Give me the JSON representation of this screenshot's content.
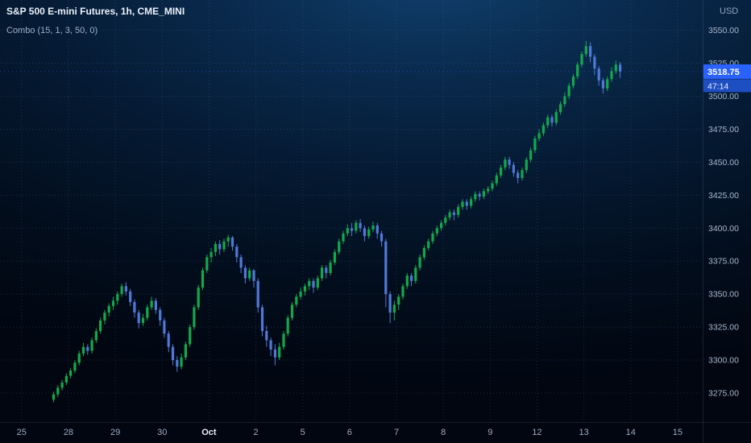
{
  "header": {
    "symbol_title": "S&P 500 E-mini Futures, 1h, CME_MINI",
    "indicator_label": "Combo (15, 1, 3, 50, 0)",
    "currency_label": "USD"
  },
  "price_scale": {
    "last_price_label": "3518.75",
    "countdown_label": "47:14",
    "last_price": 3518.75,
    "label_bg": "#2962ff",
    "countdown_bg": "#1e4fc2",
    "ticks": [
      "3550.00",
      "3525.00",
      "3500.00",
      "3475.00",
      "3450.00",
      "3425.00",
      "3400.00",
      "3375.00",
      "3350.00",
      "3325.00",
      "3300.00",
      "3275.00"
    ]
  },
  "time_scale": {
    "ticks": [
      "25",
      "28",
      "29",
      "30",
      "Oct",
      "2",
      "5",
      "6",
      "7",
      "8",
      "9",
      "12",
      "13",
      "14",
      "15"
    ],
    "month_tick": "Oct"
  },
  "chart_data": {
    "type": "candlestick",
    "title": "S&P 500 E-mini Futures, 1h, CME_MINI",
    "ylabel": "USD",
    "ylim": [
      3253,
      3573
    ],
    "price_step": 25,
    "grid": "dotted",
    "legend_position": "none",
    "up_color": "#13a94b",
    "down_color": "#5078d8",
    "bars": [
      [
        3270,
        3276,
        3268,
        3274
      ],
      [
        3274,
        3281,
        3272,
        3279
      ],
      [
        3279,
        3285,
        3277,
        3283
      ],
      [
        3283,
        3290,
        3281,
        3288
      ],
      [
        3288,
        3294,
        3286,
        3292
      ],
      [
        3292,
        3300,
        3290,
        3298
      ],
      [
        3298,
        3307,
        3296,
        3305
      ],
      [
        3305,
        3313,
        3303,
        3310
      ],
      [
        3310,
        3312,
        3304,
        3307
      ],
      [
        3307,
        3317,
        3305,
        3315
      ],
      [
        3315,
        3324,
        3313,
        3322
      ],
      [
        3322,
        3332,
        3320,
        3330
      ],
      [
        3330,
        3338,
        3327,
        3336
      ],
      [
        3336,
        3343,
        3333,
        3341
      ],
      [
        3341,
        3348,
        3338,
        3345
      ],
      [
        3345,
        3352,
        3342,
        3350
      ],
      [
        3350,
        3358,
        3348,
        3356
      ],
      [
        3356,
        3359,
        3349,
        3352
      ],
      [
        3352,
        3354,
        3341,
        3344
      ],
      [
        3344,
        3346,
        3332,
        3336
      ],
      [
        3336,
        3338,
        3324,
        3328
      ],
      [
        3328,
        3335,
        3326,
        3332
      ],
      [
        3332,
        3342,
        3330,
        3340
      ],
      [
        3340,
        3348,
        3338,
        3345
      ],
      [
        3345,
        3347,
        3335,
        3338
      ],
      [
        3338,
        3340,
        3326,
        3330
      ],
      [
        3330,
        3332,
        3317,
        3320
      ],
      [
        3320,
        3322,
        3306,
        3310
      ],
      [
        3310,
        3312,
        3296,
        3300
      ],
      [
        3300,
        3303,
        3291,
        3295
      ],
      [
        3295,
        3305,
        3293,
        3302
      ],
      [
        3302,
        3314,
        3300,
        3312
      ],
      [
        3312,
        3327,
        3310,
        3325
      ],
      [
        3325,
        3342,
        3323,
        3340
      ],
      [
        3340,
        3357,
        3338,
        3355
      ],
      [
        3355,
        3370,
        3353,
        3368
      ],
      [
        3368,
        3380,
        3366,
        3378
      ],
      [
        3378,
        3385,
        3374,
        3382
      ],
      [
        3382,
        3390,
        3379,
        3388
      ],
      [
        3388,
        3391,
        3380,
        3384
      ],
      [
        3384,
        3392,
        3382,
        3390
      ],
      [
        3390,
        3395,
        3386,
        3393
      ],
      [
        3393,
        3394,
        3383,
        3386
      ],
      [
        3386,
        3388,
        3374,
        3378
      ],
      [
        3378,
        3380,
        3366,
        3370
      ],
      [
        3370,
        3372,
        3358,
        3362
      ],
      [
        3362,
        3370,
        3360,
        3368
      ],
      [
        3368,
        3369,
        3355,
        3360
      ],
      [
        3360,
        3362,
        3336,
        3340
      ],
      [
        3340,
        3342,
        3318,
        3322
      ],
      [
        3322,
        3326,
        3310,
        3315
      ],
      [
        3315,
        3317,
        3303,
        3308
      ],
      [
        3308,
        3312,
        3296,
        3302
      ],
      [
        3302,
        3313,
        3300,
        3310
      ],
      [
        3310,
        3322,
        3308,
        3320
      ],
      [
        3320,
        3334,
        3318,
        3332
      ],
      [
        3332,
        3344,
        3330,
        3342
      ],
      [
        3342,
        3350,
        3340,
        3348
      ],
      [
        3348,
        3355,
        3346,
        3352
      ],
      [
        3352,
        3358,
        3349,
        3356
      ],
      [
        3356,
        3362,
        3353,
        3360
      ],
      [
        3360,
        3362,
        3351,
        3355
      ],
      [
        3355,
        3364,
        3353,
        3362
      ],
      [
        3362,
        3372,
        3360,
        3370
      ],
      [
        3370,
        3372,
        3362,
        3366
      ],
      [
        3366,
        3376,
        3364,
        3374
      ],
      [
        3374,
        3384,
        3372,
        3382
      ],
      [
        3382,
        3392,
        3380,
        3390
      ],
      [
        3390,
        3398,
        3388,
        3396
      ],
      [
        3396,
        3403,
        3394,
        3400
      ],
      [
        3400,
        3404,
        3394,
        3398
      ],
      [
        3398,
        3406,
        3396,
        3404
      ],
      [
        3404,
        3407,
        3397,
        3400
      ],
      [
        3400,
        3402,
        3390,
        3394
      ],
      [
        3394,
        3401,
        3392,
        3399
      ],
      [
        3399,
        3405,
        3397,
        3402
      ],
      [
        3402,
        3404,
        3392,
        3396
      ],
      [
        3396,
        3398,
        3386,
        3390
      ],
      [
        3390,
        3392,
        3340,
        3350
      ],
      [
        3350,
        3352,
        3328,
        3336
      ],
      [
        3336,
        3345,
        3330,
        3342
      ],
      [
        3342,
        3350,
        3338,
        3348
      ],
      [
        3348,
        3358,
        3346,
        3356
      ],
      [
        3356,
        3366,
        3354,
        3364
      ],
      [
        3364,
        3366,
        3356,
        3360
      ],
      [
        3360,
        3372,
        3358,
        3370
      ],
      [
        3370,
        3380,
        3368,
        3378
      ],
      [
        3378,
        3387,
        3376,
        3385
      ],
      [
        3385,
        3392,
        3383,
        3390
      ],
      [
        3390,
        3398,
        3388,
        3396
      ],
      [
        3396,
        3402,
        3394,
        3400
      ],
      [
        3400,
        3406,
        3398,
        3404
      ],
      [
        3404,
        3410,
        3402,
        3408
      ],
      [
        3408,
        3414,
        3406,
        3412
      ],
      [
        3412,
        3414,
        3406,
        3410
      ],
      [
        3410,
        3418,
        3408,
        3416
      ],
      [
        3416,
        3422,
        3414,
        3420
      ],
      [
        3420,
        3422,
        3414,
        3417
      ],
      [
        3417,
        3424,
        3415,
        3422
      ],
      [
        3422,
        3428,
        3420,
        3426
      ],
      [
        3426,
        3428,
        3421,
        3424
      ],
      [
        3424,
        3430,
        3422,
        3428
      ],
      [
        3428,
        3432,
        3426,
        3430
      ],
      [
        3430,
        3436,
        3428,
        3434
      ],
      [
        3434,
        3442,
        3432,
        3440
      ],
      [
        3440,
        3448,
        3438,
        3446
      ],
      [
        3446,
        3454,
        3444,
        3452
      ],
      [
        3452,
        3454,
        3445,
        3448
      ],
      [
        3448,
        3450,
        3439,
        3442
      ],
      [
        3442,
        3444,
        3434,
        3438
      ],
      [
        3438,
        3446,
        3436,
        3444
      ],
      [
        3444,
        3454,
        3442,
        3452
      ],
      [
        3452,
        3461,
        3450,
        3459
      ],
      [
        3459,
        3470,
        3457,
        3468
      ],
      [
        3468,
        3475,
        3466,
        3472
      ],
      [
        3472,
        3480,
        3470,
        3478
      ],
      [
        3478,
        3486,
        3476,
        3484
      ],
      [
        3484,
        3486,
        3477,
        3480
      ],
      [
        3480,
        3490,
        3478,
        3488
      ],
      [
        3488,
        3496,
        3486,
        3494
      ],
      [
        3494,
        3503,
        3492,
        3500
      ],
      [
        3500,
        3510,
        3498,
        3508
      ],
      [
        3508,
        3517,
        3506,
        3515
      ],
      [
        3515,
        3526,
        3513,
        3524
      ],
      [
        3524,
        3534,
        3522,
        3532
      ],
      [
        3532,
        3542,
        3530,
        3538
      ],
      [
        3538,
        3541,
        3526,
        3530
      ],
      [
        3530,
        3532,
        3516,
        3521
      ],
      [
        3521,
        3523,
        3508,
        3512
      ],
      [
        3512,
        3514,
        3502,
        3506
      ],
      [
        3506,
        3515,
        3504,
        3513
      ],
      [
        3513,
        3522,
        3511,
        3519
      ],
      [
        3519,
        3527,
        3517,
        3524
      ],
      [
        3524,
        3526,
        3514,
        3518.75
      ]
    ]
  }
}
